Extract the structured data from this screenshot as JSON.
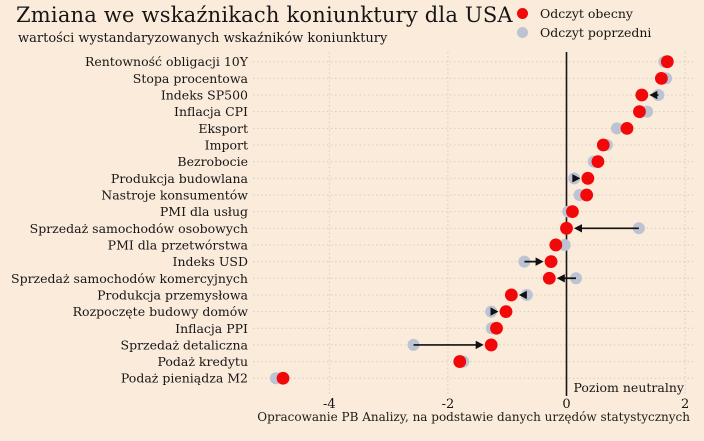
{
  "colors": {
    "background": "#fbebdb",
    "current": "#f20808",
    "previous": "#bcc3d2",
    "grid": "#d8cdc0",
    "neutral_line": "#151515",
    "arrow": "#111111",
    "text": "#161616"
  },
  "chart_data": {
    "type": "scatter",
    "variant": "dumbbell-dot-plot",
    "title": "Zmiana we wskaźnikach koniunktury dla USA",
    "subtitle": "wartości wystandaryzowanych wskaźników koniunktury",
    "source": "Opracowanie PB Analizy, na podstawie danych urzędów statystycznych",
    "legend": {
      "current": "Odczyt obecny",
      "previous": "Odczyt poprzedni"
    },
    "xlabel": "",
    "ylabel": "",
    "xlim": [
      -5.1,
      2.15
    ],
    "x_ticks": [
      -4,
      -2,
      0,
      2
    ],
    "grid_x_dotted": [
      -4,
      -2,
      2
    ],
    "neutral_x": 0,
    "neutral_label": "Poziom neutralny",
    "rows": [
      {
        "label": "Rentowność obligacji 10Y",
        "current": 1.7,
        "previous": 1.65,
        "arrow": false
      },
      {
        "label": "Stopa procentowa",
        "current": 1.6,
        "previous": 1.68,
        "arrow": false
      },
      {
        "label": "Indeks SP500",
        "current": 1.27,
        "previous": 1.55,
        "arrow": true
      },
      {
        "label": "Inflacja CPI",
        "current": 1.23,
        "previous": 1.36,
        "arrow": false
      },
      {
        "label": "Eksport",
        "current": 1.02,
        "previous": 0.85,
        "arrow": false
      },
      {
        "label": "Import",
        "current": 0.62,
        "previous": 0.68,
        "arrow": false
      },
      {
        "label": "Bezrobocie",
        "current": 0.53,
        "previous": 0.46,
        "arrow": false
      },
      {
        "label": "Produkcja budowlana",
        "current": 0.36,
        "previous": 0.13,
        "arrow": true
      },
      {
        "label": "Nastroje konsumentów",
        "current": 0.34,
        "previous": 0.22,
        "arrow": false
      },
      {
        "label": "PMI dla usług",
        "current": 0.1,
        "previous": 0.03,
        "arrow": false
      },
      {
        "label": "Sprzedaż samochodów osobowych",
        "current": 0.0,
        "previous": 1.22,
        "arrow": true
      },
      {
        "label": "PMI dla przetwórstwa",
        "current": -0.18,
        "previous": -0.03,
        "arrow": false
      },
      {
        "label": "Indeks USD",
        "current": -0.26,
        "previous": -0.71,
        "arrow": true
      },
      {
        "label": "Sprzedaż samochodów komercyjnych",
        "current": -0.29,
        "previous": 0.16,
        "arrow": true
      },
      {
        "label": "Produkcja przemysłowa",
        "current": -0.93,
        "previous": -0.67,
        "arrow": true
      },
      {
        "label": "Rozpoczęte budowy domów",
        "current": -1.02,
        "previous": -1.27,
        "arrow": true
      },
      {
        "label": "Inflacja PPI",
        "current": -1.18,
        "previous": -1.26,
        "arrow": false
      },
      {
        "label": "Sprzedaż detaliczna",
        "current": -1.27,
        "previous": -2.58,
        "arrow": true
      },
      {
        "label": "Podaż kredytu",
        "current": -1.8,
        "previous": -1.74,
        "arrow": false
      },
      {
        "label": "Podaż pieniądza M2",
        "current": -4.78,
        "previous": -4.9,
        "arrow": false
      }
    ]
  }
}
